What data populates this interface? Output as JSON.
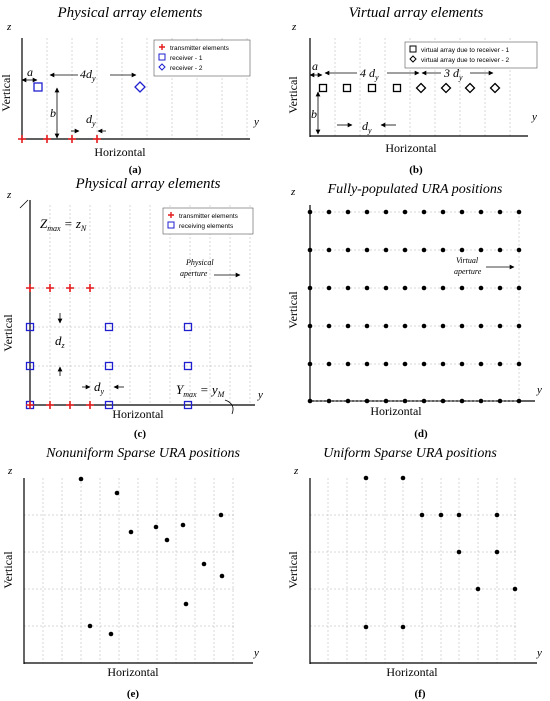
{
  "panels": {
    "a": {
      "title": "Physical array elements",
      "xlabel": "Horizontal",
      "ylabel": "Vertical",
      "z_axis": "z",
      "y_axis": "y",
      "caption": "(a)",
      "legend": {
        "tx": "transmitter elements",
        "r1": "receiver - 1",
        "r2": "receiver - 2"
      },
      "ann": {
        "a": "a",
        "b": "b",
        "dy": "d",
        "dy_sub": "y",
        "fourdy": "4d",
        "fourdy_sub": "y"
      }
    },
    "b": {
      "title": "Virtual array elements",
      "xlabel": "Horizontal",
      "ylabel": "Vertical",
      "z_axis": "z",
      "y_axis": "y",
      "caption": "(b)",
      "legend": {
        "v1": "virtual array due to receiver - 1",
        "v2": "virtual array due to receiver - 2"
      },
      "ann": {
        "a": "a",
        "b": "b",
        "fourdy": "4 d",
        "fourdy_sub": "y",
        "threedy": "3 d",
        "threedy_sub": "y",
        "dy": "d",
        "dy_sub": "y"
      }
    },
    "c": {
      "title": "Physical array elements",
      "xlabel": "Horizontal",
      "ylabel": "Vertical",
      "z_axis": "z",
      "y_axis": "y",
      "caption": "(c)",
      "legend": {
        "tx": "transmitter elements",
        "rx": "receiving elements"
      },
      "ann": {
        "zmax": "Z",
        "zmax_sub": "max",
        "zmax_eq": " = z",
        "zmax_eq_sub": "N",
        "ymax": "Y",
        "ymax_sub": "max",
        "ymax_eq": " = y",
        "ymax_eq_sub": "M",
        "dz": "d",
        "dz_sub": "z",
        "dy": "d",
        "dy_sub": "y",
        "phys1": "Physical",
        "phys2": "aperture"
      }
    },
    "d": {
      "title": "Fully-populated URA positions",
      "xlabel": "Horizontal",
      "ylabel": "Vertical",
      "z_axis": "z",
      "y_axis": "y",
      "caption": "(d)",
      "ann": {
        "virt1": "Virtual",
        "virt2": "aperture"
      }
    },
    "e": {
      "title": "Nonuniform Sparse URA positions",
      "xlabel": "Horizontal",
      "ylabel": "Vertical",
      "z_axis": "z",
      "y_axis": "y",
      "caption": "(e)"
    },
    "f": {
      "title": "Uniform Sparse URA positions",
      "xlabel": "Horizontal",
      "ylabel": "Vertical",
      "z_axis": "z",
      "y_axis": "y",
      "caption": "(f)"
    }
  },
  "colors": {
    "transmitter": "#e41a1c",
    "receiver": "#1f1fd0",
    "ink": "#000000",
    "grid": "#b0b0b0"
  }
}
